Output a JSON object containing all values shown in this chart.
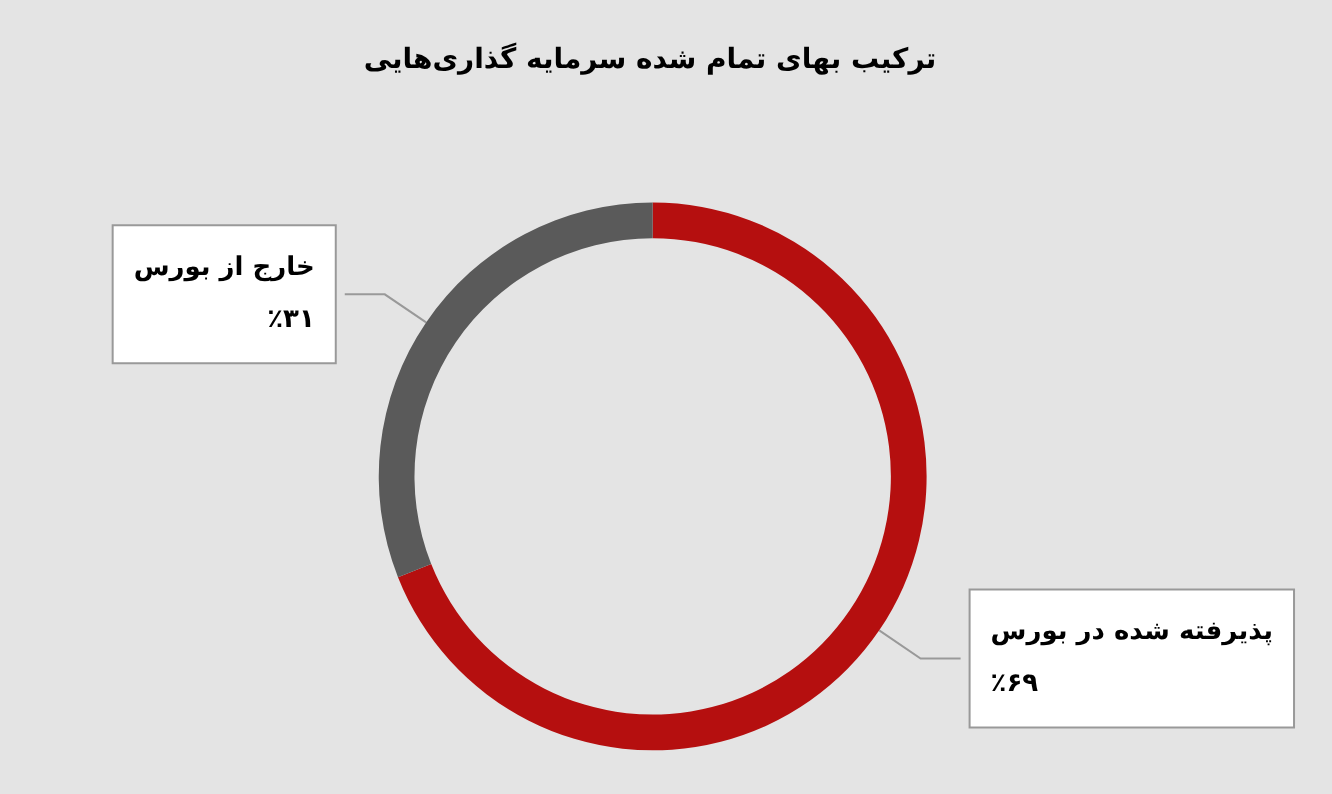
{
  "chart_data": {
    "type": "donut",
    "title": "ترکیب بهای تمام شده سرمایه گذاری‌هایی",
    "categories": [
      "پذیرفته شده در بورس",
      "خارج از بورس"
    ],
    "values": [
      69,
      31
    ],
    "colors": [
      "#b50f0f",
      "#5a5a5a"
    ],
    "value_labels": [
      "٪۶۹",
      "٪۳۱"
    ],
    "legend": false
  }
}
